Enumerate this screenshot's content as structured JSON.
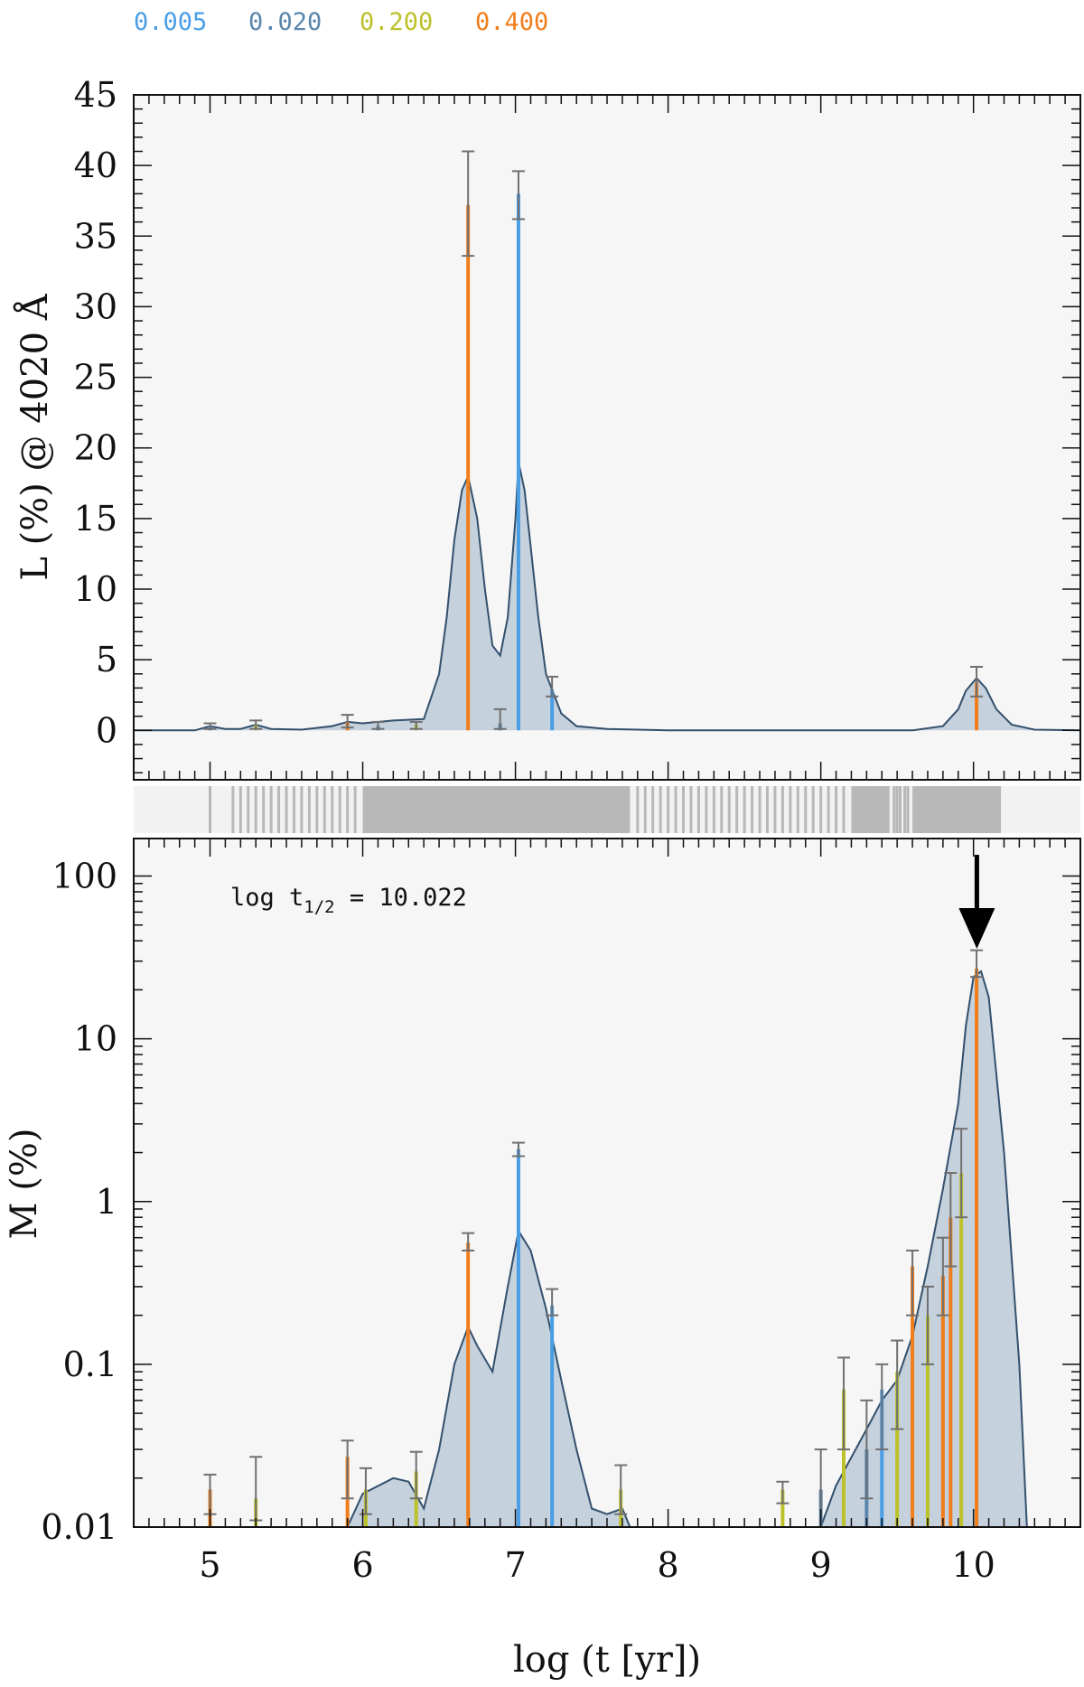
{
  "legend": [
    {
      "label": "0.005",
      "color": "#4a9ee6"
    },
    {
      "label": "0.020",
      "color": "#5a86ad"
    },
    {
      "label": "0.200",
      "color": "#bdc12a"
    },
    {
      "label": "0.400",
      "color": "#f07e1b"
    }
  ],
  "colors": {
    "panel_bg": "#f6f6f6",
    "fill": "#c5d1dc",
    "curve": "#33506d",
    "errbar": "#707070",
    "strip_bg": "#f2f2f2",
    "strip_line": "#b8b8b8",
    "arrow": "#000000"
  },
  "xaxis": {
    "label": "log (t [yr])",
    "range": [
      4.5,
      10.7
    ],
    "ticks": [
      "5",
      "6",
      "7",
      "8",
      "9",
      "10"
    ]
  },
  "annotation": {
    "text_main": "log t",
    "text_sub": "1/2",
    "text_tail": " = 10.022",
    "log_t_half": 10.022
  },
  "chart_data": [
    {
      "type": "bar",
      "ylabel": "L (%) @ 4020 Å",
      "ylim": [
        -3.5,
        45
      ],
      "yticks": [
        "0",
        "5",
        "10",
        "15",
        "20",
        "25",
        "30",
        "35",
        "40",
        "45"
      ],
      "bars": [
        {
          "x": 5.0,
          "y": 0.3,
          "err": [
            0.1,
            0.5
          ],
          "z": "0.020"
        },
        {
          "x": 5.3,
          "y": 0.4,
          "err": [
            0.1,
            0.7
          ],
          "z": "0.200"
        },
        {
          "x": 5.9,
          "y": 0.6,
          "err": [
            0.2,
            1.1
          ],
          "z": "0.400"
        },
        {
          "x": 6.1,
          "y": 0.3,
          "err": [
            0.1,
            0.6
          ],
          "z": "0.020"
        },
        {
          "x": 6.35,
          "y": 0.4,
          "err": [
            0.1,
            0.6
          ],
          "z": "0.200"
        },
        {
          "x": 6.69,
          "y": 37.2,
          "err": [
            33.6,
            41.0
          ],
          "z": "0.400"
        },
        {
          "x": 6.9,
          "y": 0.5,
          "err": [
            0.1,
            1.5
          ],
          "z": "0.020"
        },
        {
          "x": 7.02,
          "y": 38.0,
          "err": [
            36.2,
            39.6
          ],
          "z": "0.005"
        },
        {
          "x": 7.24,
          "y": 2.9,
          "err": [
            2.4,
            3.8
          ],
          "z": "0.005"
        },
        {
          "x": 10.02,
          "y": 3.4,
          "err": [
            2.4,
            4.5
          ],
          "z": "0.400"
        }
      ],
      "curve": {
        "x": [
          4.5,
          4.9,
          5.0,
          5.1,
          5.2,
          5.3,
          5.4,
          5.6,
          5.8,
          5.9,
          6.0,
          6.2,
          6.4,
          6.5,
          6.55,
          6.6,
          6.65,
          6.69,
          6.75,
          6.8,
          6.85,
          6.9,
          6.95,
          7.0,
          7.02,
          7.06,
          7.1,
          7.15,
          7.2,
          7.3,
          7.4,
          7.6,
          8.0,
          9.0,
          9.6,
          9.8,
          9.9,
          9.95,
          10.02,
          10.08,
          10.15,
          10.25,
          10.4,
          10.7
        ],
        "y": [
          0,
          0,
          0.3,
          0.1,
          0.1,
          0.4,
          0.1,
          0.05,
          0.3,
          0.6,
          0.5,
          0.7,
          0.8,
          4,
          8,
          13.5,
          17,
          18,
          15,
          10,
          6,
          5.3,
          8,
          15,
          19,
          17,
          13,
          8,
          4,
          1.2,
          0.3,
          0.1,
          0,
          0,
          0,
          0.3,
          1.5,
          2.8,
          3.7,
          3.0,
          1.5,
          0.4,
          0.05,
          0
        ]
      }
    },
    {
      "type": "bar",
      "ylabel": "M (%)",
      "yscale": "log",
      "ylim": [
        0.01,
        170
      ],
      "yticks": [
        "0.01",
        "0.1",
        "1",
        "10",
        "100"
      ],
      "bars": [
        {
          "x": 5.0,
          "y": 0.017,
          "err": [
            0.012,
            0.021
          ],
          "z": "0.400"
        },
        {
          "x": 5.3,
          "y": 0.015,
          "err": [
            0.011,
            0.027
          ],
          "z": "0.200"
        },
        {
          "x": 5.9,
          "y": 0.027,
          "err": [
            0.015,
            0.034
          ],
          "z": "0.400"
        },
        {
          "x": 6.02,
          "y": 0.017,
          "err": [
            0.012,
            0.023
          ],
          "z": "0.200"
        },
        {
          "x": 6.35,
          "y": 0.022,
          "err": [
            0.015,
            0.029
          ],
          "z": "0.200"
        },
        {
          "x": 6.69,
          "y": 0.56,
          "err": [
            0.5,
            0.64
          ],
          "z": "0.400"
        },
        {
          "x": 7.02,
          "y": 2.1,
          "err": [
            1.9,
            2.3
          ],
          "z": "0.005"
        },
        {
          "x": 7.24,
          "y": 0.23,
          "err": [
            0.2,
            0.29
          ],
          "z": "0.005"
        },
        {
          "x": 7.69,
          "y": 0.017,
          "err": [
            0.012,
            0.024
          ],
          "z": "0.200"
        },
        {
          "x": 8.75,
          "y": 0.017,
          "err": [
            0.014,
            0.019
          ],
          "z": "0.200"
        },
        {
          "x": 9.0,
          "y": 0.017,
          "err": [
            0.01,
            0.03
          ],
          "z": "0.020"
        },
        {
          "x": 9.15,
          "y": 0.07,
          "err": [
            0.03,
            0.11
          ],
          "z": "0.200"
        },
        {
          "x": 9.3,
          "y": 0.03,
          "err": [
            0.015,
            0.06
          ],
          "z": "0.020"
        },
        {
          "x": 9.4,
          "y": 0.07,
          "err": [
            0.03,
            0.1
          ],
          "z": "0.005"
        },
        {
          "x": 9.5,
          "y": 0.09,
          "err": [
            0.04,
            0.14
          ],
          "z": "0.200"
        },
        {
          "x": 9.6,
          "y": 0.4,
          "err": [
            0.2,
            0.5
          ],
          "z": "0.400"
        },
        {
          "x": 9.7,
          "y": 0.2,
          "err": [
            0.1,
            0.3
          ],
          "z": "0.200"
        },
        {
          "x": 9.8,
          "y": 0.35,
          "err": [
            0.2,
            0.6
          ],
          "z": "0.400"
        },
        {
          "x": 9.85,
          "y": 0.8,
          "err": [
            0.4,
            1.5
          ],
          "z": "0.400"
        },
        {
          "x": 9.92,
          "y": 1.5,
          "err": [
            0.8,
            2.8
          ],
          "z": "0.200"
        },
        {
          "x": 10.02,
          "y": 27,
          "err": [
            24,
            35
          ],
          "z": "0.400"
        }
      ],
      "curve": {
        "x": [
          5.9,
          6.0,
          6.2,
          6.3,
          6.4,
          6.5,
          6.6,
          6.69,
          6.75,
          6.85,
          6.95,
          7.02,
          7.1,
          7.2,
          7.3,
          7.4,
          7.5,
          7.6,
          7.7,
          7.75,
          9.0,
          9.1,
          9.3,
          9.4,
          9.5,
          9.6,
          9.7,
          9.8,
          9.9,
          9.95,
          10.0,
          10.05,
          10.1,
          10.2,
          10.3,
          10.35
        ],
        "y": [
          0.01,
          0.016,
          0.02,
          0.019,
          0.013,
          0.03,
          0.1,
          0.17,
          0.13,
          0.09,
          0.3,
          0.66,
          0.5,
          0.22,
          0.08,
          0.03,
          0.013,
          0.012,
          0.013,
          0.01,
          0.01,
          0.018,
          0.04,
          0.06,
          0.08,
          0.15,
          0.4,
          1.2,
          4,
          12,
          24,
          26,
          18,
          2,
          0.1,
          0.01
        ]
      }
    }
  ],
  "strip": {
    "range": [
      5.0,
      10.18
    ],
    "solid_spans": [
      [
        6.0,
        7.75
      ],
      [
        9.2,
        9.45
      ],
      [
        9.6,
        10.18
      ]
    ],
    "lines": [
      5.0,
      5.15,
      5.2,
      5.25,
      5.3,
      5.35,
      5.4,
      5.45,
      5.5,
      5.55,
      5.6,
      5.65,
      5.7,
      5.75,
      5.8,
      5.85,
      5.9,
      5.95,
      7.8,
      7.85,
      7.9,
      7.95,
      8.0,
      8.05,
      8.1,
      8.15,
      8.2,
      8.25,
      8.3,
      8.35,
      8.4,
      8.45,
      8.5,
      8.55,
      8.6,
      8.65,
      8.7,
      8.75,
      8.8,
      8.85,
      8.9,
      8.95,
      9.0,
      9.05,
      9.1,
      9.15,
      9.48,
      9.5,
      9.52,
      9.55,
      9.57
    ]
  }
}
